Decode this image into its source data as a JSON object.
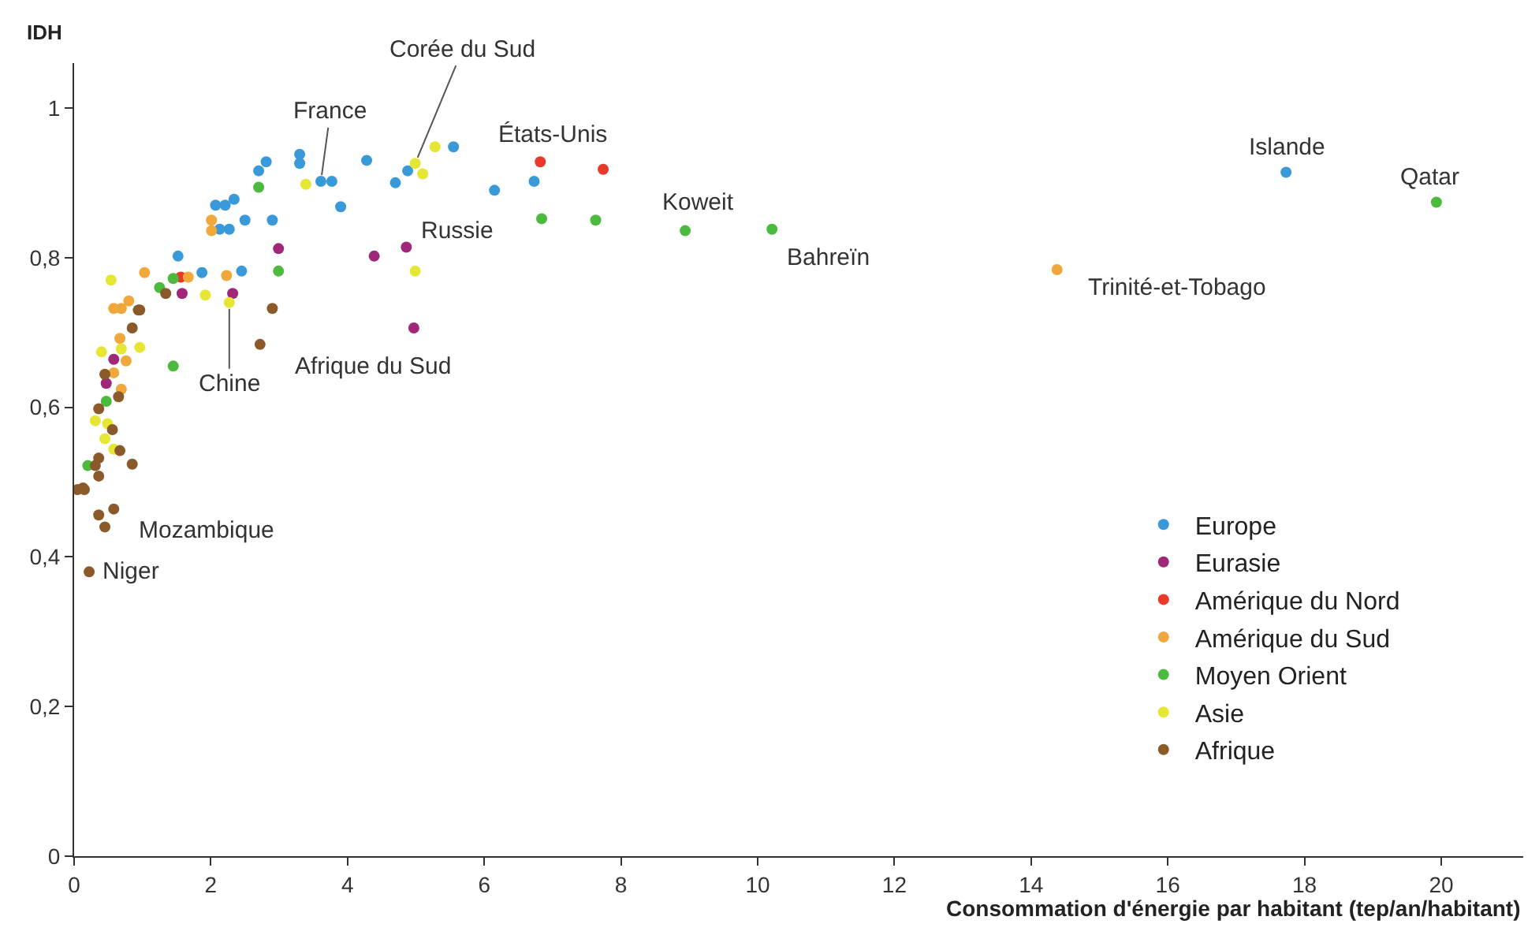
{
  "chart_data": {
    "type": "scatter",
    "xlabel": "Consommation d'énergie par habitant (tep/an/habitant)",
    "ylabel": "IDH",
    "xlim": [
      0,
      21.2
    ],
    "ylim": [
      0,
      1.06
    ],
    "xticks": [
      0,
      2,
      4,
      6,
      8,
      10,
      12,
      14,
      16,
      18,
      20
    ],
    "yticks": [
      0,
      {
        "value": 0.2,
        "label": "0,2"
      },
      {
        "value": 0.4,
        "label": "0,4"
      },
      {
        "value": 0.6,
        "label": "0,6"
      },
      {
        "value": 0.8,
        "label": "0,8"
      },
      1
    ],
    "legend": "bottom right",
    "marker": "circle",
    "series": [
      {
        "name": "Europe",
        "color": "#3a9ad9",
        "x": [
          1.52,
          1.87,
          2.45,
          2.07,
          2.21,
          2.34,
          2.13,
          2.27,
          2.5,
          2.9,
          2.7,
          2.81,
          3.3,
          3.3,
          3.61,
          3.77,
          3.9,
          4.28,
          4.7,
          4.88,
          5.55,
          6.15,
          6.73,
          17.73
        ],
        "values": [
          0.802,
          0.78,
          0.782,
          0.87,
          0.87,
          0.878,
          0.838,
          0.838,
          0.85,
          0.85,
          0.916,
          0.928,
          0.938,
          0.926,
          0.902,
          0.902,
          0.868,
          0.93,
          0.9,
          0.916,
          0.948,
          0.89,
          0.902,
          0.914
        ]
      },
      {
        "name": "Eurasie",
        "color": "#a0287a",
        "x": [
          2.99,
          4.39,
          4.86,
          1.58,
          2.32,
          4.97,
          0.58,
          0.47
        ],
        "values": [
          0.812,
          0.802,
          0.814,
          0.752,
          0.752,
          0.706,
          0.664,
          0.632
        ]
      },
      {
        "name": "Amérique du Nord",
        "color": "#e8392b",
        "x": [
          6.82,
          7.74,
          1.56
        ],
        "values": [
          0.928,
          0.918,
          0.774
        ]
      },
      {
        "name": "Amérique du Sud",
        "color": "#f0a83c",
        "x": [
          1.03,
          1.67,
          2.01,
          2.01,
          2.23,
          0.58,
          0.69,
          0.8,
          0.67,
          0.76,
          0.58,
          0.69,
          14.38
        ],
        "values": [
          0.78,
          0.774,
          0.85,
          0.836,
          0.776,
          0.732,
          0.732,
          0.742,
          0.692,
          0.662,
          0.646,
          0.624,
          0.784
        ]
      },
      {
        "name": "Moyen Orient",
        "color": "#4cba3c",
        "x": [
          2.7,
          2.99,
          1.25,
          1.45,
          1.45,
          0.47,
          0.2,
          6.84,
          7.63,
          8.94,
          10.21,
          19.93
        ],
        "values": [
          0.894,
          0.782,
          0.76,
          0.772,
          0.655,
          0.608,
          0.522,
          0.852,
          0.85,
          0.836,
          0.838,
          0.874
        ]
      },
      {
        "name": "Asie",
        "color": "#e6e635",
        "x": [
          3.39,
          4.99,
          1.92,
          2.27,
          5.28,
          4.99,
          5.1,
          0.54,
          0.4,
          0.69,
          0.96,
          0.31,
          0.49,
          0.45,
          0.58
        ],
        "values": [
          0.898,
          0.782,
          0.75,
          0.74,
          0.948,
          0.926,
          0.912,
          0.77,
          0.674,
          0.678,
          0.68,
          0.582,
          0.578,
          0.558,
          0.544
        ]
      },
      {
        "name": "Afrique",
        "color": "#8b5a2b",
        "x": [
          1.34,
          0.96,
          2.9,
          2.72,
          0.94,
          0.85,
          0.45,
          0.65,
          0.36,
          0.56,
          0.67,
          0.85,
          0.36,
          0.31,
          0.36,
          0.13,
          0.36,
          0.58,
          0.45,
          0.22,
          0.05,
          0.15
        ],
        "values": [
          0.752,
          0.73,
          0.732,
          0.684,
          0.73,
          0.706,
          0.644,
          0.614,
          0.598,
          0.57,
          0.542,
          0.524,
          0.532,
          0.522,
          0.508,
          0.492,
          0.456,
          0.464,
          0.44,
          0.38,
          0.49,
          0.49
        ]
      }
    ],
    "annotations": [
      {
        "text": "Corée du Sud",
        "x": 4.99,
        "y": 0.926
      },
      {
        "text": "France",
        "x": 3.61,
        "y": 0.902
      },
      {
        "text": "États-Unis",
        "x": 6.82,
        "y": 0.928
      },
      {
        "text": "Russie",
        "x": 4.86,
        "y": 0.814
      },
      {
        "text": "Koweit",
        "x": 8.94,
        "y": 0.836
      },
      {
        "text": "Bahreïn",
        "x": 10.21,
        "y": 0.838
      },
      {
        "text": "Islande",
        "x": 17.73,
        "y": 0.914
      },
      {
        "text": "Qatar",
        "x": 19.93,
        "y": 0.874
      },
      {
        "text": "Trinité-et-Tobago",
        "x": 14.38,
        "y": 0.784
      },
      {
        "text": "Afrique du Sud",
        "x": 2.72,
        "y": 0.684
      },
      {
        "text": "Chine",
        "x": 2.27,
        "y": 0.74
      },
      {
        "text": "Mozambique",
        "x": 0.45,
        "y": 0.44
      },
      {
        "text": "Niger",
        "x": 0.22,
        "y": 0.38
      }
    ]
  }
}
